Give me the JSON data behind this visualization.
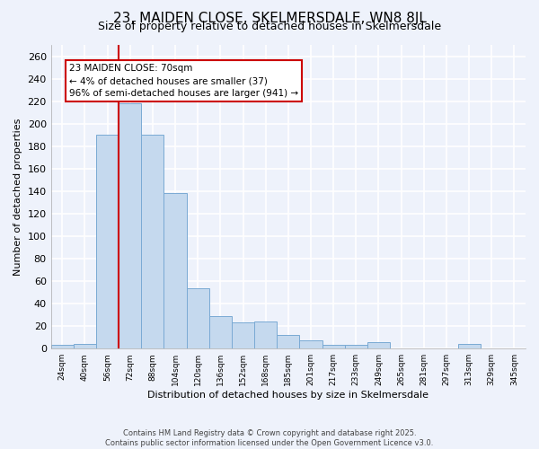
{
  "title": "23, MAIDEN CLOSE, SKELMERSDALE, WN8 8JL",
  "subtitle": "Size of property relative to detached houses in Skelmersdale",
  "xlabel": "Distribution of detached houses by size in Skelmersdale",
  "ylabel": "Number of detached properties",
  "categories": [
    "24sqm",
    "40sqm",
    "56sqm",
    "72sqm",
    "88sqm",
    "104sqm",
    "120sqm",
    "136sqm",
    "152sqm",
    "168sqm",
    "185sqm",
    "201sqm",
    "217sqm",
    "233sqm",
    "249sqm",
    "265sqm",
    "281sqm",
    "297sqm",
    "313sqm",
    "329sqm",
    "345sqm"
  ],
  "values": [
    3,
    4,
    190,
    218,
    190,
    138,
    54,
    29,
    23,
    24,
    12,
    7,
    3,
    3,
    6,
    0,
    0,
    0,
    4,
    0,
    0
  ],
  "bar_color": "#c5d9ee",
  "bar_edge_color": "#7aaad4",
  "vline_color": "#cc0000",
  "annotation_title": "23 MAIDEN CLOSE: 70sqm",
  "annotation_line1": "← 4% of detached houses are smaller (37)",
  "annotation_line2": "96% of semi-detached houses are larger (941) →",
  "annotation_box_color": "white",
  "annotation_box_edge": "#cc0000",
  "ylim": [
    0,
    270
  ],
  "yticks": [
    0,
    20,
    40,
    60,
    80,
    100,
    120,
    140,
    160,
    180,
    200,
    220,
    240,
    260
  ],
  "footer1": "Contains HM Land Registry data © Crown copyright and database right 2025.",
  "footer2": "Contains public sector information licensed under the Open Government Licence v3.0.",
  "background_color": "#eef2fb"
}
